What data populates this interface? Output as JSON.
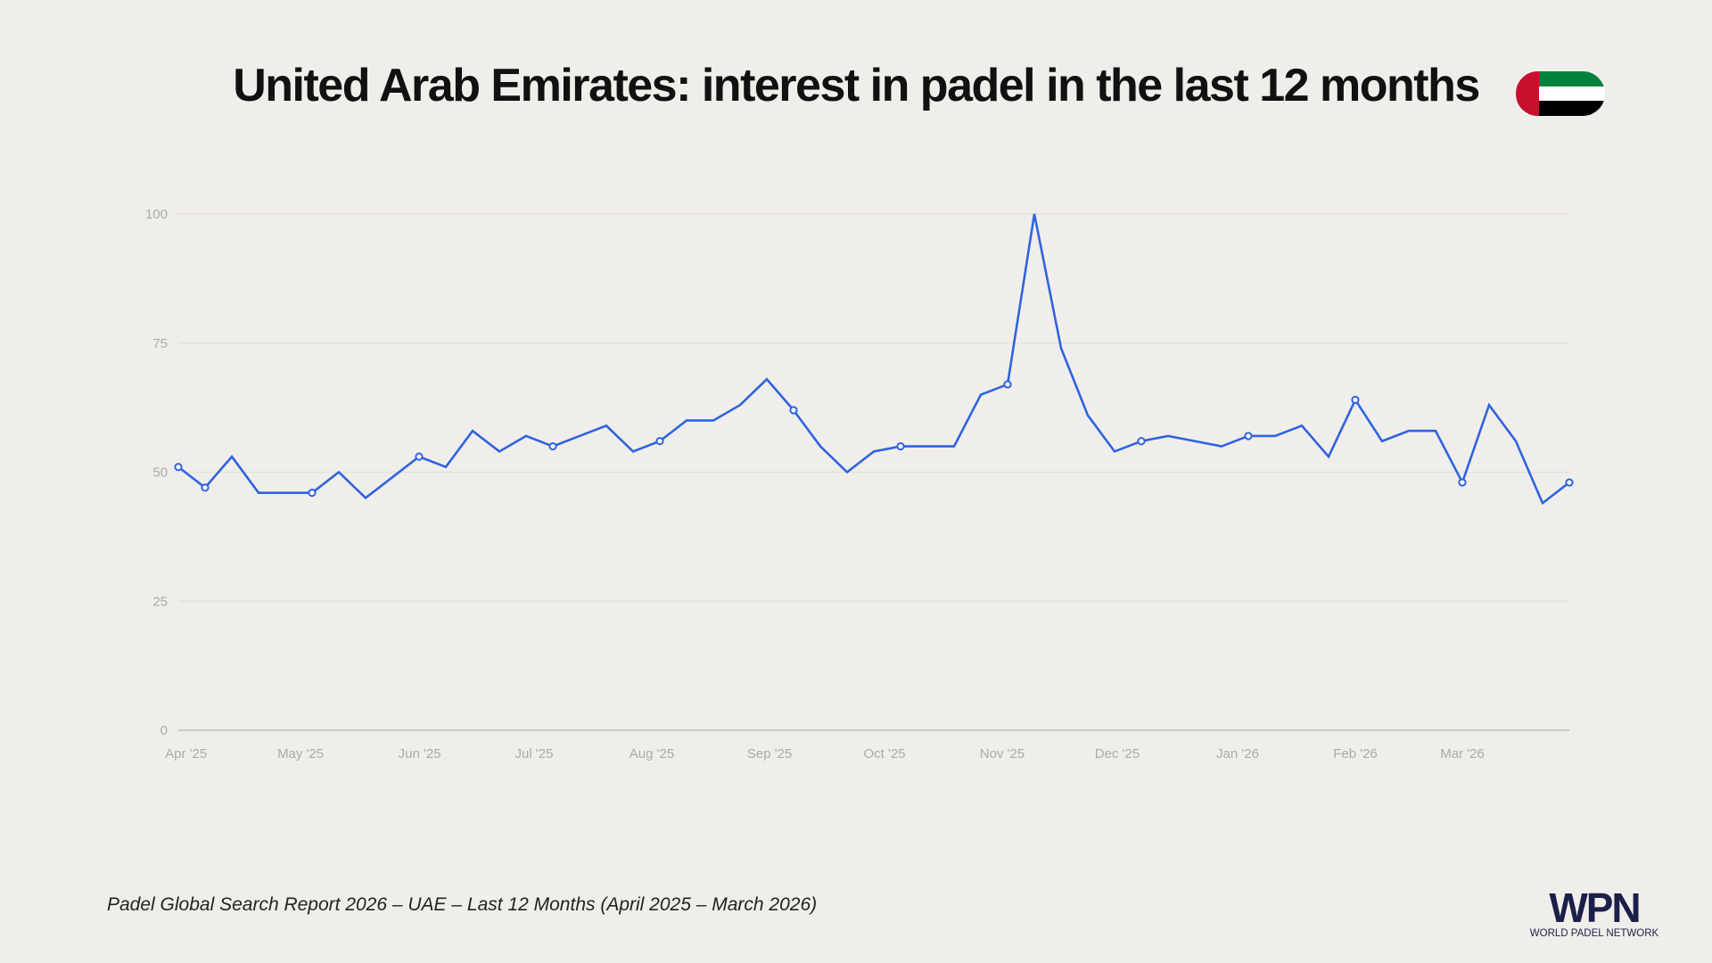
{
  "title": "United Arab Emirates: interest in padel in the last 12 months",
  "footer": "Padel Global Search Report 2026 – UAE – Last 12 Months (April 2025 – March 2026)",
  "logo": {
    "text": "WPN",
    "subtitle": "WORLD PADEL NETWORK"
  },
  "flag": {
    "name": "uae-flag",
    "colors": {
      "red": "#c8102e",
      "green": "#00843d",
      "white": "#ffffff",
      "black": "#000000"
    }
  },
  "chart_data": {
    "type": "line",
    "title": "",
    "xlabel": "",
    "ylabel": "",
    "ylim": [
      0,
      100
    ],
    "yticks": [
      0,
      25,
      50,
      75,
      100
    ],
    "xtick_labels": [
      "Apr '25",
      "May '25",
      "Jun '25",
      "Jul '25",
      "Aug '25",
      "Sep '25",
      "Oct '25",
      "Nov '25",
      "Dec '25",
      "Jan '26",
      "Feb '26",
      "Mar '26"
    ],
    "grid": true,
    "line_color": "#2f63e0",
    "values": [
      51,
      47,
      53,
      46,
      46,
      46,
      50,
      45,
      49,
      53,
      51,
      58,
      54,
      57,
      55,
      57,
      59,
      54,
      56,
      60,
      60,
      63,
      68,
      62,
      55,
      50,
      54,
      55,
      55,
      55,
      65,
      67,
      100,
      74,
      61,
      54,
      56,
      57,
      56,
      55,
      57,
      57,
      59,
      53,
      64,
      56,
      58,
      58,
      48,
      63,
      56,
      44,
      48
    ]
  }
}
